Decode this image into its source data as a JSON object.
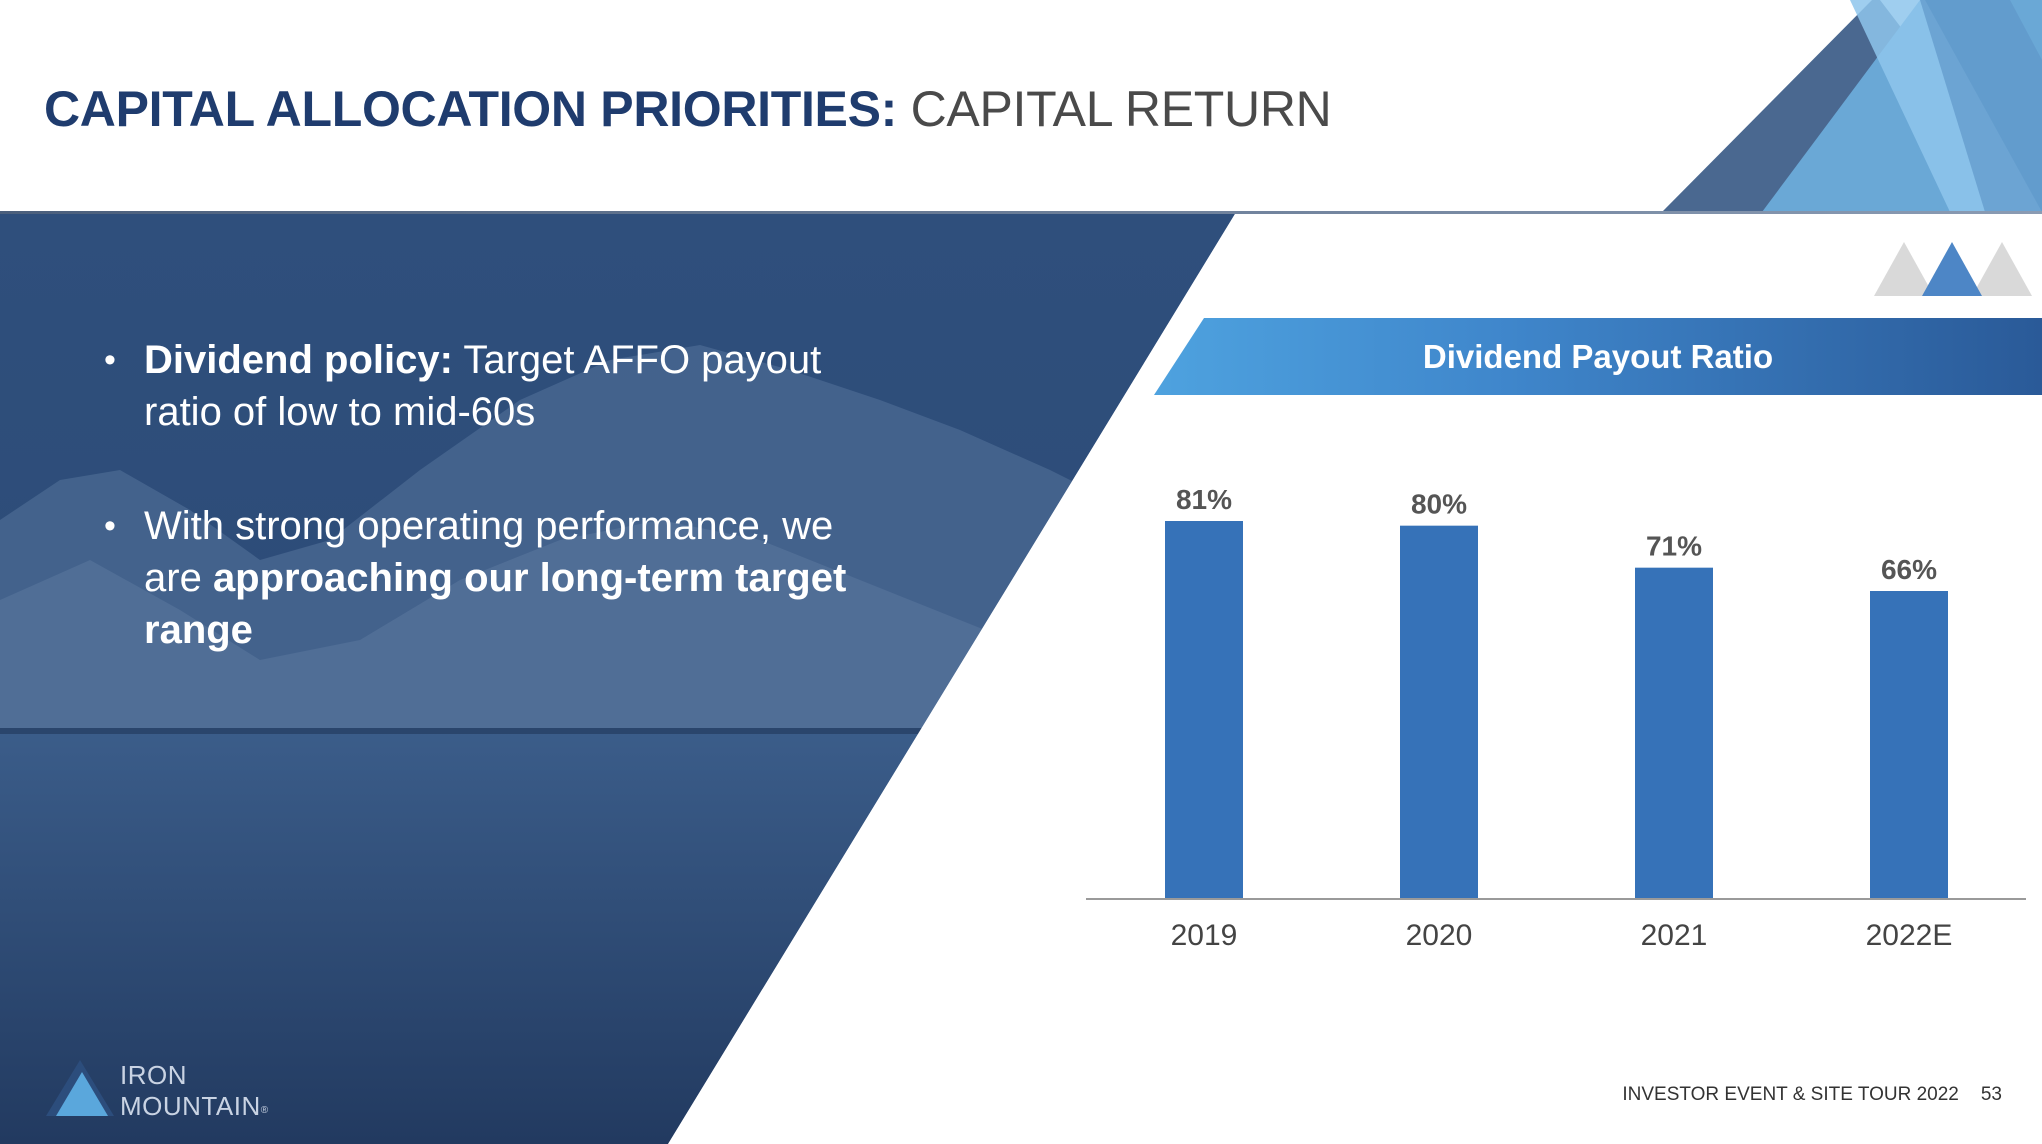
{
  "title": {
    "strong": "CAPITAL ALLOCATION PRIORITIES:",
    "light": "CAPITAL RETURN"
  },
  "bullets": [
    {
      "bold": "Dividend policy:",
      "text": " Target AFFO payout ratio of low to mid-60s"
    },
    {
      "text": "With strong operating performance, we are ",
      "bold": "approaching our long-term target range"
    }
  ],
  "chart_data": {
    "type": "bar",
    "title": "Dividend Payout Ratio",
    "categories": [
      "2019",
      "2020",
      "2021",
      "2022E"
    ],
    "values": [
      81,
      80,
      71,
      66
    ],
    "data_labels": [
      "81%",
      "80%",
      "71%",
      "66%"
    ],
    "ylim": [
      0,
      100
    ],
    "grid": false,
    "bar_color": "#3672b8"
  },
  "logo": {
    "line1": "IRON",
    "line2": "MOUNTAIN",
    "mark": "®"
  },
  "footer": {
    "event": "INVESTOR EVENT & SITE TOUR 2022",
    "page": "53"
  },
  "colors": {
    "title_blue": "#1f3c6e",
    "panel_blue": "#2e4d7b",
    "accent_light_blue": "#6fb1e0"
  }
}
